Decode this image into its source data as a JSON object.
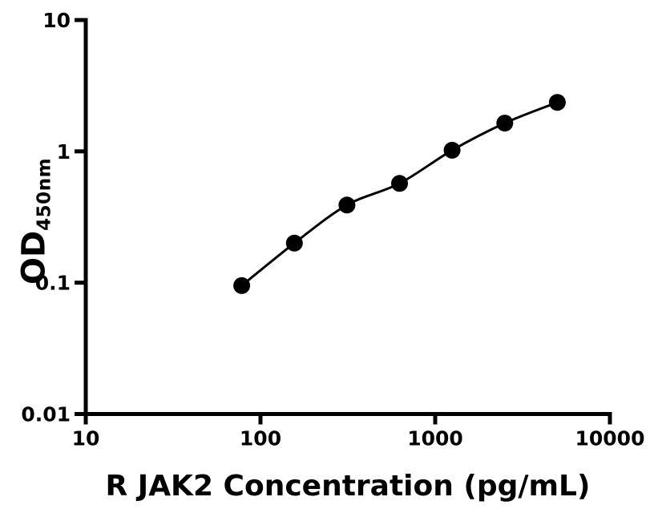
{
  "figure": {
    "background": "#ffffff",
    "axis_color": "#000000"
  },
  "chart_data": {
    "type": "scatter",
    "curve": "fitted smooth line through markers",
    "xlabel": "R JAK2 Concentration (pg/mL)",
    "ylabel_main": "OD",
    "ylabel_sub": "450nm",
    "xscale": "log",
    "yscale": "log",
    "xlim": [
      10,
      10000
    ],
    "ylim": [
      0.01,
      10
    ],
    "x_tick_values": [
      10,
      100,
      1000,
      10000
    ],
    "x_tick_labels": [
      "10",
      "100",
      "1000",
      "10000"
    ],
    "y_tick_values": [
      0.01,
      0.1,
      1,
      10
    ],
    "y_tick_labels": [
      "0.01",
      "0.1",
      "1",
      "10"
    ],
    "grid": false,
    "legend": false,
    "series": [
      {
        "x": [
          78.125,
          156.25,
          312.5,
          625,
          1250,
          2500,
          5000
        ],
        "y": [
          0.095,
          0.2,
          0.39,
          0.57,
          1.02,
          1.64,
          2.36
        ],
        "marker": "filled-circle",
        "marker_color": "#000000",
        "line_color": "#000000"
      }
    ]
  }
}
